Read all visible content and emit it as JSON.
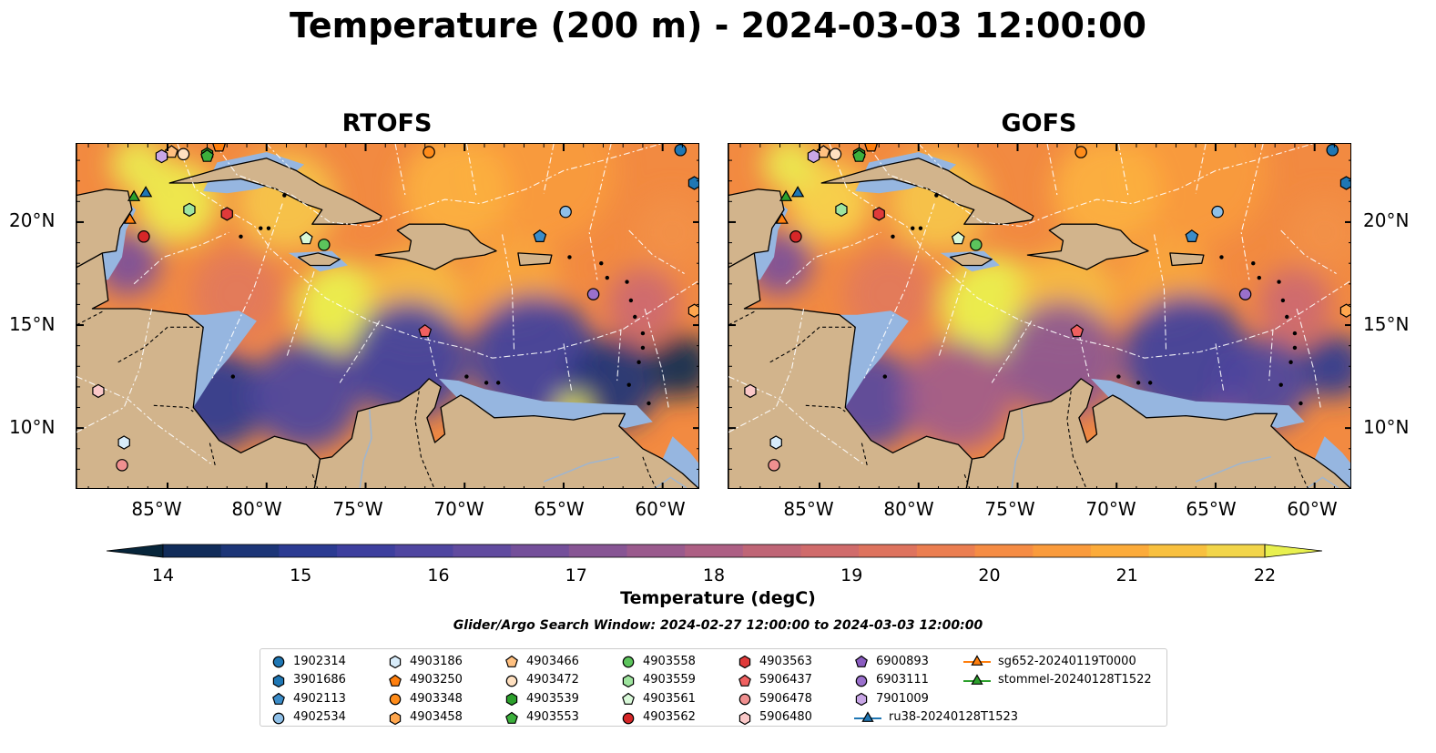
{
  "title": "Temperature (200 m) - 2024-03-03 12:00:00",
  "panels": [
    {
      "title": "RTOFS"
    },
    {
      "title": "GOFS"
    }
  ],
  "axes": {
    "x_ticks": [
      "85°W",
      "80°W",
      "75°W",
      "70°W",
      "65°W",
      "60°W"
    ],
    "y_ticks": [
      "20°N",
      "15°N",
      "10°N"
    ]
  },
  "colorbar": {
    "label": "Temperature (degC)",
    "ticks": [
      "14",
      "15",
      "16",
      "17",
      "18",
      "19",
      "20",
      "21",
      "22"
    ],
    "colors": [
      "#07253a",
      "#112c5a",
      "#1c3577",
      "#2b3b92",
      "#3d3f9e",
      "#4f45a0",
      "#614b9f",
      "#744f9a",
      "#875594",
      "#9a5a8d",
      "#ad5f84",
      "#bf6576",
      "#d06b6b",
      "#de735e",
      "#eb7e51",
      "#f58c44",
      "#fa9b3c",
      "#fcab3a",
      "#f8c03f",
      "#f2d54a",
      "#e8f04f"
    ]
  },
  "search_window": "Glider/Argo Search Window: 2024-02-27 12:00:00 to 2024-03-03 12:00:00",
  "legend": [
    {
      "label": "1902314",
      "shape": "circle",
      "color": "#1f77b4"
    },
    {
      "label": "3901686",
      "shape": "hexagon",
      "color": "#1f77b4"
    },
    {
      "label": "4902113",
      "shape": "pentagon",
      "color": "#3b8cc8"
    },
    {
      "label": "4902534",
      "shape": "circle",
      "color": "#8fc0e8"
    },
    {
      "label": "4903186",
      "shape": "hexagon",
      "color": "#d8ecfa"
    },
    {
      "label": "4903250",
      "shape": "pentagon",
      "color": "#ff7f0e"
    },
    {
      "label": "4903348",
      "shape": "circle",
      "color": "#ff8c1a"
    },
    {
      "label": "4903458",
      "shape": "hexagon",
      "color": "#ffa64d"
    },
    {
      "label": "4903466",
      "shape": "pentagon",
      "color": "#ffc080"
    },
    {
      "label": "4903472",
      "shape": "circle",
      "color": "#ffe0c0"
    },
    {
      "label": "4903539",
      "shape": "hexagon",
      "color": "#2ca02c"
    },
    {
      "label": "4903553",
      "shape": "pentagon",
      "color": "#3cb03c"
    },
    {
      "label": "4903558",
      "shape": "circle",
      "color": "#5cc45c"
    },
    {
      "label": "4903559",
      "shape": "hexagon",
      "color": "#9ee49e"
    },
    {
      "label": "4903561",
      "shape": "pentagon",
      "color": "#d8f8d8"
    },
    {
      "label": "4903562",
      "shape": "circle",
      "color": "#d62728"
    },
    {
      "label": "4903563",
      "shape": "hexagon",
      "color": "#e03a3a"
    },
    {
      "label": "5906437",
      "shape": "pentagon",
      "color": "#f06060"
    },
    {
      "label": "5906478",
      "shape": "circle",
      "color": "#f09090"
    },
    {
      "label": "5906480",
      "shape": "hexagon",
      "color": "#fac8c8"
    },
    {
      "label": "6900893",
      "shape": "pentagon",
      "color": "#8a5cc0"
    },
    {
      "label": "6903111",
      "shape": "circle",
      "color": "#9a70cc"
    },
    {
      "label": "7901009",
      "shape": "hexagon",
      "color": "#c8a6e6"
    },
    {
      "label": "ru38-20240128T1523",
      "shape": "triangle-line",
      "color": "#1f77b4"
    },
    {
      "label": "sg652-20240119T0000",
      "shape": "triangle-line",
      "color": "#ff7f0e"
    },
    {
      "label": "stommel-20240128T1522",
      "shape": "triangle-line",
      "color": "#2ca02c"
    }
  ],
  "markers": [
    {
      "float": "1902314",
      "lon": -59.1,
      "lat": 23.5
    },
    {
      "float": "3901686",
      "lon": -58.4,
      "lat": 21.9
    },
    {
      "float": "4902113",
      "lon": -66.2,
      "lat": 19.3
    },
    {
      "float": "4902534",
      "lon": -64.9,
      "lat": 20.5
    },
    {
      "float": "4903186",
      "lon": -87.2,
      "lat": 9.3
    },
    {
      "float": "4903250",
      "lon": -82.4,
      "lat": 23.7
    },
    {
      "float": "4903348",
      "lon": -71.8,
      "lat": 23.4
    },
    {
      "float": "4903458",
      "lon": -58.4,
      "lat": 15.7
    },
    {
      "float": "4903466",
      "lon": -84.8,
      "lat": 23.4
    },
    {
      "float": "4903472",
      "lon": -84.2,
      "lat": 23.3
    },
    {
      "float": "4903539",
      "lon": -83.0,
      "lat": 23.3
    },
    {
      "float": "4903553",
      "lon": -83.0,
      "lat": 23.2
    },
    {
      "float": "4903558",
      "lon": -77.1,
      "lat": 18.9
    },
    {
      "float": "4903559",
      "lon": -83.9,
      "lat": 20.6
    },
    {
      "float": "4903561",
      "lon": -78.0,
      "lat": 19.2
    },
    {
      "float": "4903562",
      "lon": -86.2,
      "lat": 19.3
    },
    {
      "float": "4903563",
      "lon": -82.0,
      "lat": 20.4
    },
    {
      "float": "5906437",
      "lon": -72.0,
      "lat": 14.7
    },
    {
      "float": "5906478",
      "lon": -87.3,
      "lat": 8.2
    },
    {
      "float": "5906480",
      "lon": -88.5,
      "lat": 11.8
    },
    {
      "float": "6903111",
      "lon": -63.5,
      "lat": 16.5
    },
    {
      "float": "7901009",
      "lon": -85.3,
      "lat": 23.2
    },
    {
      "float": "ru38-20240128T1523",
      "lon": -86.1,
      "lat": 21.4
    },
    {
      "float": "sg652-20240119T0000",
      "lon": -86.9,
      "lat": 20.1
    },
    {
      "float": "stommel-20240128T1522",
      "lon": -86.7,
      "lat": 21.2
    }
  ]
}
